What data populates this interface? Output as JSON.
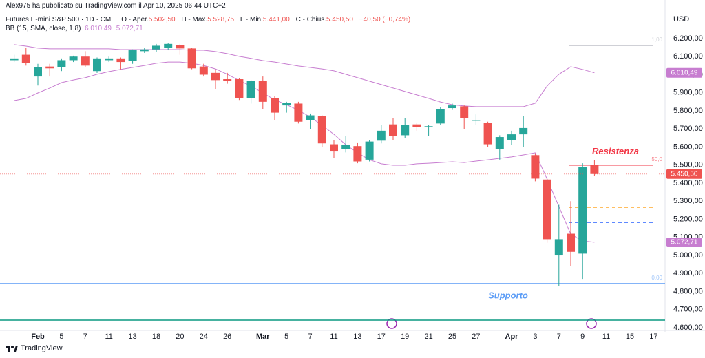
{
  "header": {
    "published": "Alex975 ha pubblicato su TradingView.com il Apr 10, 2025 06:44 UTC+2"
  },
  "chart_data": {
    "type": "candlestick",
    "title": "Futures E-mini S&P 500 · 1D · CME",
    "ohlc_legend": [
      {
        "key": "O - Aper.",
        "value": "5.502,50"
      },
      {
        "key": "H - Max.",
        "value": "5.528,75"
      },
      {
        "key": "L - Min.",
        "value": "5.441,00"
      },
      {
        "key": "C - Chius.",
        "value": "5.450,50"
      }
    ],
    "change": "−40,50 (−0,74%)",
    "currency": "USD",
    "categories": [
      null,
      null,
      "Feb",
      null,
      "5",
      null,
      "7",
      null,
      "11",
      null,
      "13",
      null,
      "18",
      null,
      "20",
      null,
      "24",
      null,
      "26",
      null,
      null,
      "Mar",
      null,
      "5",
      null,
      "7",
      null,
      "11",
      null,
      "13",
      null,
      "17",
      null,
      "19",
      null,
      "21",
      null,
      "25",
      null,
      "27",
      null,
      null,
      "Apr",
      null,
      "3",
      null,
      "7",
      null,
      "9",
      null,
      "11",
      null,
      "15",
      null,
      "17"
    ],
    "open": [
      6080,
      6110,
      5990,
      6045,
      6040,
      6080,
      6100,
      6020,
      6080,
      6090,
      6075,
      6130,
      6140,
      6150,
      6165,
      6145,
      6045,
      6010,
      5975,
      5975,
      5870,
      5965,
      5870,
      5830,
      5840,
      5750,
      5770,
      5615,
      5590,
      5605,
      5530,
      5635,
      5725,
      5665,
      5725,
      5710,
      5730,
      5815,
      5825,
      5745,
      5735,
      5590,
      5640,
      5670,
      5555,
      5420,
      5000,
      5120,
      5010,
      5502.5,
      null,
      null,
      null,
      null,
      null
    ],
    "high": [
      6110,
      6150,
      6060,
      6060,
      6090,
      6105,
      6130,
      6095,
      6100,
      6095,
      6140,
      6150,
      6170,
      6175,
      6170,
      6150,
      6060,
      6030,
      6010,
      5980,
      5970,
      5990,
      5880,
      5850,
      5850,
      5785,
      5775,
      5640,
      5660,
      5625,
      5640,
      5720,
      5760,
      5760,
      5735,
      5720,
      5820,
      5840,
      5830,
      5780,
      5740,
      5665,
      5690,
      5770,
      5565,
      5425,
      5280,
      5300,
      5510,
      5528.75,
      null,
      null,
      null,
      null,
      null
    ],
    "low": [
      6070,
      6050,
      5940,
      5990,
      6020,
      6070,
      6040,
      6010,
      6070,
      6030,
      6060,
      6120,
      6125,
      6135,
      6110,
      6030,
      5990,
      5920,
      5950,
      5860,
      5840,
      5810,
      5750,
      5790,
      5730,
      5700,
      5600,
      5540,
      5570,
      5510,
      5520,
      5620,
      5640,
      5650,
      5690,
      5660,
      5720,
      5805,
      5700,
      5720,
      5600,
      5530,
      5610,
      5600,
      5410,
      5070,
      4830,
      4940,
      4870,
      5441,
      null,
      null,
      null,
      null,
      null
    ],
    "close": [
      6090,
      6065,
      6040,
      6035,
      6080,
      6100,
      6050,
      6090,
      6090,
      6070,
      6135,
      6140,
      6160,
      6170,
      6145,
      6035,
      6000,
      5970,
      5965,
      5870,
      5965,
      5850,
      5790,
      5845,
      5740,
      5775,
      5620,
      5575,
      5610,
      5520,
      5630,
      5690,
      5660,
      5720,
      5710,
      5715,
      5810,
      5830,
      5760,
      5750,
      5615,
      5655,
      5670,
      5705,
      5425,
      5090,
      5090,
      5020,
      5490,
      5450.5,
      null,
      null,
      null,
      null,
      null
    ],
    "up_color": "#26a69a",
    "down_color": "#ef5350",
    "indicator": {
      "name": "BB (15, SMA, close, 1,8)",
      "color": "#c77dd0",
      "upper": {
        "values": [
          6166,
          6158,
          6147,
          6143,
          6143,
          6143,
          6143,
          6143,
          6143,
          6139,
          6139,
          6139,
          6139,
          6139,
          6139,
          6135,
          6135,
          6128,
          6116,
          6101,
          6090,
          6078,
          6070,
          6059,
          6048,
          6040,
          6032,
          6021,
          6002,
          5983,
          5964,
          5945,
          5926,
          5907,
          5888,
          5869,
          5849,
          5834,
          5827,
          5823,
          5823,
          5823,
          5823,
          5823,
          5842,
          5937,
          6002,
          6044,
          6029,
          6010.49,
          null,
          null,
          null,
          null,
          null
        ],
        "last_label": "6.010,49"
      },
      "lower": {
        "values": [
          5857,
          5869,
          5899,
          5926,
          5956,
          5971,
          5983,
          6002,
          6017,
          6029,
          6040,
          6051,
          6063,
          6070,
          6070,
          6063,
          6051,
          6032,
          6002,
          5968,
          5937,
          5899,
          5861,
          5834,
          5803,
          5766,
          5720,
          5670,
          5613,
          5568,
          5529,
          5507,
          5499,
          5499,
          5507,
          5510,
          5514,
          5518,
          5514,
          5522,
          5529,
          5537,
          5545,
          5556,
          5568,
          5423,
          5270,
          5118,
          5080,
          5072.71,
          null,
          null,
          null,
          null,
          null
        ],
        "last_label": "5.072,71"
      }
    },
    "ylim": [
      4585,
      6375
    ],
    "yticks": [
      {
        "value": 4600,
        "label": "4.600,00"
      },
      {
        "value": 4700,
        "label": "4.700,00"
      },
      {
        "value": 4800,
        "label": "4.800,00"
      },
      {
        "value": 4900,
        "label": "4.900,00"
      },
      {
        "value": 5000,
        "label": "5.000,00"
      },
      {
        "value": 5100,
        "label": "5.100,00"
      },
      {
        "value": 5200,
        "label": "5.200,00"
      },
      {
        "value": 5300,
        "label": "5.300,00"
      },
      {
        "value": 5400,
        "label": "5.400,00"
      },
      {
        "value": 5500,
        "label": "5.500,00"
      },
      {
        "value": 5600,
        "label": "5.600,00"
      },
      {
        "value": 5700,
        "label": "5.700,00"
      },
      {
        "value": 5800,
        "label": "5.800,00"
      },
      {
        "value": 5900,
        "label": "5.900,00"
      },
      {
        "value": 6000,
        "label": "6.000,00"
      },
      {
        "value": 6100,
        "label": "6.100,00"
      },
      {
        "value": 6200,
        "label": "6.200,00"
      }
    ],
    "grid": false,
    "levels": [
      {
        "value": 6162,
        "color": "#b2b5be",
        "extent": "partial",
        "label": "1,00"
      },
      {
        "value": 5500,
        "color": "#f23645",
        "extent": "partial",
        "label": "50,0",
        "annotation": "Resistenza",
        "annotation_position": "above"
      },
      {
        "value": 4844,
        "color": "#5b9cf6",
        "extent": "full",
        "label": "0,00",
        "annotation": "Supporto",
        "annotation_position": "below"
      },
      {
        "value": 4642,
        "color": "#089981",
        "extent": "full"
      },
      {
        "value": 5267,
        "color": "#ff9800",
        "extent": "partial",
        "style": "dashed"
      },
      {
        "value": 5183,
        "color": "#2962ff",
        "extent": "partial",
        "style": "dashed"
      }
    ]
  },
  "footer": {
    "brand": "TradingView"
  }
}
